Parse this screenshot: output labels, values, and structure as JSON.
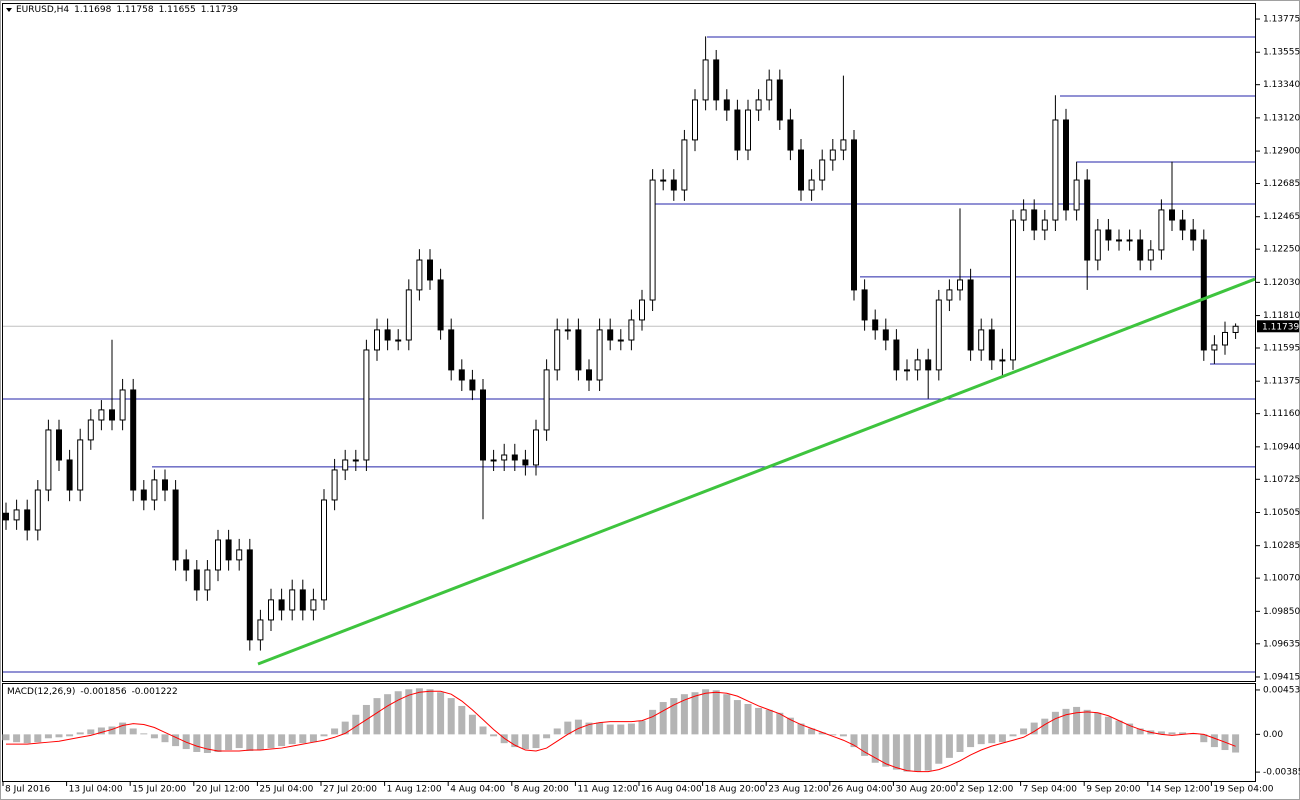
{
  "chart_data": [
    {
      "type": "candlestick",
      "title": "EURUSD,H4",
      "categories": [
        "8 Jul 2016",
        null,
        null,
        null,
        null,
        null,
        "13 Jul 04:00",
        null,
        null,
        null,
        null,
        null,
        "15 Jul 20:00",
        null,
        null,
        null,
        null,
        null,
        "20 Jul 12:00",
        null,
        null,
        null,
        null,
        null,
        "25 Jul 04:00",
        null,
        null,
        null,
        null,
        null,
        "27 Jul 20:00",
        null,
        null,
        null,
        null,
        null,
        "1 Aug 12:00",
        null,
        null,
        null,
        null,
        null,
        "4 Aug 04:00",
        null,
        null,
        null,
        null,
        null,
        "8 Aug 20:00",
        null,
        null,
        null,
        null,
        null,
        "11 Aug 12:00",
        null,
        null,
        null,
        null,
        null,
        "16 Aug 04:00",
        null,
        null,
        null,
        null,
        null,
        "18 Aug 20:00",
        null,
        null,
        null,
        null,
        null,
        "23 Aug 12:00",
        null,
        null,
        null,
        null,
        null,
        "26 Aug 04:00",
        null,
        null,
        null,
        null,
        null,
        "30 Aug 20:00",
        null,
        null,
        null,
        null,
        null,
        "2 Sep 12:00",
        null,
        null,
        null,
        null,
        null,
        "7 Sep 04:00",
        null,
        null,
        null,
        null,
        null,
        "9 Sep 20:00",
        null,
        null,
        null,
        null,
        null,
        "14 Sep 12:00",
        null,
        null,
        null,
        null,
        null,
        "19 Sep 04:00",
        null,
        null
      ],
      "open": [
        1.105,
        1.10456,
        1.10522,
        1.10389,
        1.10654,
        1.11052,
        1.10853,
        1.10654,
        1.10986,
        1.11118,
        1.11185,
        1.11118,
        1.11317,
        1.10654,
        1.10588,
        1.10721,
        1.10654,
        1.10191,
        1.10124,
        1.09992,
        1.10124,
        1.10323,
        1.10191,
        1.10257,
        1.09661,
        1.09793,
        1.09926,
        1.09859,
        1.09992,
        1.09859,
        1.09926,
        1.10588,
        1.10787,
        1.10853,
        1.10853,
        1.11582,
        1.11715,
        1.11648,
        1.11648,
        1.1198,
        1.12178,
        1.12046,
        1.11715,
        1.1145,
        1.11383,
        1.11317,
        1.10853,
        1.10853,
        1.10886,
        1.10853,
        1.1082,
        1.11052,
        1.1145,
        1.11715,
        1.11715,
        1.1145,
        1.11383,
        1.11715,
        1.11648,
        1.11648,
        1.11781,
        1.11913,
        1.12708,
        1.12708,
        1.12642,
        1.12974,
        1.13239,
        1.13504,
        1.13239,
        1.13172,
        1.12907,
        1.13172,
        1.13239,
        1.13371,
        1.13106,
        1.12907,
        1.12642,
        1.12708,
        1.12841,
        1.12907,
        1.12974,
        1.1198,
        1.11781,
        1.11715,
        1.11648,
        1.1145,
        1.1145,
        1.11516,
        1.1145,
        1.11913,
        1.1198,
        1.12046,
        1.11582,
        1.11715,
        1.11516,
        1.11516,
        1.12443,
        1.1251,
        1.12377,
        1.12443,
        1.13106,
        1.1251,
        1.12708,
        1.12178,
        1.12377,
        1.12311,
        1.12311,
        1.12311,
        1.12178,
        1.12245,
        1.1251,
        1.12443,
        1.12377,
        1.12311,
        1.11582,
        1.11615,
        1.11698
      ],
      "high": [
        1.1057,
        1.1059,
        1.1059,
        1.1072,
        1.1112,
        1.1112,
        1.1092,
        1.1106,
        1.1119,
        1.1125,
        1.1165,
        1.1139,
        1.1139,
        1.1072,
        1.1079,
        1.1079,
        1.1072,
        1.1026,
        1.1019,
        1.1019,
        1.1039,
        1.1039,
        1.1033,
        1.1033,
        1.0986,
        1.1,
        1.1,
        1.1006,
        1.1006,
        1.1,
        1.1066,
        1.1086,
        1.1092,
        1.1092,
        1.1165,
        1.1179,
        1.1179,
        1.1172,
        1.1205,
        1.1225,
        1.1225,
        1.1212,
        1.1179,
        1.1152,
        1.1145,
        1.1139,
        1.1092,
        1.1096,
        1.1096,
        1.1092,
        1.1112,
        1.1152,
        1.1179,
        1.1179,
        1.1179,
        1.1152,
        1.1179,
        1.1179,
        1.1172,
        1.1185,
        1.1198,
        1.1278,
        1.1278,
        1.1278,
        1.1304,
        1.1331,
        1.1366,
        1.1357,
        1.1331,
        1.1324,
        1.1324,
        1.1331,
        1.1344,
        1.1344,
        1.1318,
        1.1298,
        1.1278,
        1.1291,
        1.1298,
        1.134,
        1.1304,
        1.1205,
        1.1185,
        1.1179,
        1.1172,
        1.1152,
        1.1159,
        1.1159,
        1.1198,
        1.1205,
        1.1252,
        1.1212,
        1.1179,
        1.1179,
        1.1159,
        1.1251,
        1.1258,
        1.1258,
        1.1251,
        1.1327,
        1.1318,
        1.1283,
        1.1278,
        1.1245,
        1.1245,
        1.1238,
        1.1238,
        1.1238,
        1.1231,
        1.1258,
        1.1283,
        1.1251,
        1.1245,
        1.1238,
        1.1168,
        1.1177,
        1.11758
      ],
      "low": [
        1.1039,
        1.1039,
        1.1032,
        1.1032,
        1.1058,
        1.1078,
        1.1058,
        1.1058,
        1.1092,
        1.1105,
        1.1105,
        1.1105,
        1.1058,
        1.1052,
        1.1052,
        1.1058,
        1.1012,
        1.1005,
        1.0992,
        1.0992,
        1.1005,
        1.1012,
        1.1012,
        1.0959,
        1.0959,
        1.0972,
        1.0979,
        1.0979,
        1.0979,
        1.0979,
        1.0986,
        1.1052,
        1.1072,
        1.1078,
        1.1078,
        1.1151,
        1.1158,
        1.1158,
        1.1158,
        1.1191,
        1.1198,
        1.1165,
        1.1138,
        1.1131,
        1.1125,
        1.1046,
        1.1078,
        1.1078,
        1.1078,
        1.1075,
        1.1075,
        1.1098,
        1.1138,
        1.1165,
        1.1138,
        1.1131,
        1.1131,
        1.1158,
        1.1158,
        1.1158,
        1.1171,
        1.1184,
        1.1264,
        1.1257,
        1.1257,
        1.129,
        1.1317,
        1.1317,
        1.131,
        1.1284,
        1.1284,
        1.131,
        1.1317,
        1.1304,
        1.1284,
        1.1257,
        1.1257,
        1.1264,
        1.1277,
        1.1284,
        1.1191,
        1.1171,
        1.1165,
        1.1158,
        1.1138,
        1.1138,
        1.1138,
        1.1126,
        1.1138,
        1.1184,
        1.1191,
        1.1151,
        1.1151,
        1.1145,
        1.114,
        1.1145,
        1.1237,
        1.1231,
        1.1231,
        1.1237,
        1.1244,
        1.1244,
        1.1198,
        1.1211,
        1.1224,
        1.1224,
        1.1224,
        1.1211,
        1.1211,
        1.1218,
        1.1237,
        1.1231,
        1.1224,
        1.1151,
        1.1149,
        1.1155,
        1.11655
      ],
      "close": [
        1.10456,
        1.10522,
        1.10389,
        1.10654,
        1.11052,
        1.10853,
        1.10654,
        1.10986,
        1.11118,
        1.11185,
        1.11118,
        1.11317,
        1.10654,
        1.10588,
        1.10721,
        1.10654,
        1.10191,
        1.10124,
        1.09992,
        1.10124,
        1.10323,
        1.10191,
        1.10257,
        1.09661,
        1.09793,
        1.09926,
        1.09859,
        1.09992,
        1.09859,
        1.09926,
        1.10588,
        1.10787,
        1.10853,
        1.10853,
        1.11582,
        1.11715,
        1.11648,
        1.11648,
        1.1198,
        1.12178,
        1.12046,
        1.11715,
        1.1145,
        1.11383,
        1.11317,
        1.10853,
        1.10853,
        1.10886,
        1.10853,
        1.1082,
        1.11052,
        1.1145,
        1.11715,
        1.11715,
        1.1145,
        1.11383,
        1.11715,
        1.11648,
        1.11648,
        1.11781,
        1.11913,
        1.12708,
        1.12708,
        1.12642,
        1.12974,
        1.13239,
        1.13504,
        1.13239,
        1.13172,
        1.12907,
        1.13172,
        1.13239,
        1.13371,
        1.13106,
        1.12907,
        1.12642,
        1.12708,
        1.12841,
        1.12907,
        1.12974,
        1.1198,
        1.11781,
        1.11715,
        1.11648,
        1.1145,
        1.1145,
        1.11516,
        1.1145,
        1.11913,
        1.1198,
        1.12046,
        1.11582,
        1.11715,
        1.11516,
        1.11516,
        1.12443,
        1.1251,
        1.12377,
        1.12443,
        1.13106,
        1.1251,
        1.12708,
        1.12178,
        1.12377,
        1.12311,
        1.12311,
        1.12311,
        1.12178,
        1.12245,
        1.1251,
        1.12443,
        1.12377,
        1.12311,
        1.11582,
        1.11615,
        1.11698,
        1.11739
      ],
      "up_color": "#ffffff",
      "down_color": "#000000",
      "ylim": [
        1.09395,
        1.13868
      ],
      "yticks": [
        1.13775,
        1.13555,
        {
          "value": 1.1334,
          "label": "1.13340"
        },
        {
          "value": 1.1312,
          "label": "1.13120"
        },
        {
          "value": 1.129,
          "label": "1.12900"
        },
        1.12685,
        1.12465,
        {
          "value": 1.1225,
          "label": "1.12250"
        },
        {
          "value": 1.1203,
          "label": "1.12030"
        },
        {
          "value": 1.1181,
          "label": "1.11810"
        },
        1.11595,
        1.11375,
        {
          "value": 1.1116,
          "label": "1.11160"
        },
        {
          "value": 1.1094,
          "label": "1.10940"
        },
        1.10725,
        1.10505,
        1.10285,
        {
          "value": 1.1007,
          "label": "1.10070"
        },
        {
          "value": 1.0985,
          "label": "1.09850"
        },
        1.09635,
        1.09415
      ],
      "levels": [
        1.13656,
        1.13265,
        1.12828,
        1.12549,
        1.12066,
        1.11489,
        1.11257,
        1.10807,
        1.09448
      ],
      "level_color": "#2323a8",
      "trendline": {
        "values": [
          1.09501,
          1.12052
        ],
        "color": "#3ec43e"
      }
    },
    {
      "type": "macd",
      "title": "MACD(12,26,9)",
      "histogram": [
        -0.0006,
        -0.0008,
        -0.0009,
        -0.0008,
        -0.0004,
        -0.0003,
        -0.0002,
        0.0002,
        0.0005,
        0.0007,
        0.0008,
        0.0012,
        0.0006,
        0.0001,
        -0.0004,
        -0.0008,
        -0.0012,
        -0.0015,
        -0.0018,
        -0.0019,
        -0.0018,
        -0.0016,
        -0.0014,
        -0.0017,
        -0.0016,
        -0.0014,
        -0.0012,
        -0.001,
        -0.0009,
        -0.0008,
        -0.0002,
        0.0006,
        0.0013,
        0.002,
        0.003,
        0.0037,
        0.0041,
        0.0044,
        0.0046,
        0.0047,
        0.0046,
        0.0043,
        0.0037,
        0.0029,
        0.002,
        0.0008,
        -0.0002,
        -0.0009,
        -0.0013,
        -0.0015,
        -0.0014,
        -0.0004,
        0.0006,
        0.0013,
        0.0015,
        0.0012,
        0.0012,
        0.001,
        0.001,
        0.0011,
        0.0014,
        0.0025,
        0.0033,
        0.0037,
        0.0041,
        0.0043,
        0.0046,
        0.0045,
        0.0041,
        0.0035,
        0.0031,
        0.0027,
        0.0025,
        0.0022,
        0.0017,
        0.0011,
        0.0006,
        0.0002,
        -0.0001,
        -0.0002,
        -0.0013,
        -0.0022,
        -0.0029,
        -0.0033,
        -0.0036,
        -0.0038,
        -0.0038,
        -0.0037,
        -0.003,
        -0.0024,
        -0.0018,
        -0.0013,
        -0.001,
        -0.0009,
        -0.0008,
        -0.0002,
        0.0006,
        0.0012,
        0.0016,
        0.0023,
        0.0026,
        0.0028,
        0.0025,
        0.0022,
        0.0018,
        0.0014,
        0.0011,
        0.0006,
        0.0004,
        0.0003,
        0.0002,
        0.0002,
        0.0001,
        -0.0008,
        -0.0013,
        -0.0016,
        -0.001856
      ],
      "signal": [
        -0.001,
        -0.001,
        -0.001,
        -0.0009,
        -0.0008,
        -0.0007,
        -0.0005,
        -0.0003,
        -0.0001,
        0.0002,
        0.0005,
        0.0009,
        0.0011,
        0.001,
        0.0007,
        0.0002,
        -0.0003,
        -0.0008,
        -0.0012,
        -0.0015,
        -0.0017,
        -0.0017,
        -0.0017,
        -0.0016,
        -0.0016,
        -0.0015,
        -0.0014,
        -0.0012,
        -0.001,
        -0.0008,
        -0.0006,
        -0.0003,
        0.0001,
        0.0008,
        0.0015,
        0.0022,
        0.0029,
        0.0035,
        0.004,
        0.0043,
        0.0044,
        0.0044,
        0.0041,
        0.0034,
        0.0025,
        0.0015,
        0.0005,
        -0.0004,
        -0.0011,
        -0.0016,
        -0.0017,
        -0.0014,
        -0.0007,
        0,
        0.0006,
        0.001,
        0.0012,
        0.0013,
        0.0013,
        0.0013,
        0.0014,
        0.0018,
        0.0024,
        0.003,
        0.0035,
        0.0039,
        0.0042,
        0.0043,
        0.0042,
        0.0039,
        0.0034,
        0.0029,
        0.0025,
        0.0021,
        0.0015,
        0.001,
        0.0006,
        0.0002,
        -0.0002,
        -0.0006,
        -0.0011,
        -0.0018,
        -0.0024,
        -0.003,
        -0.0034,
        -0.0037,
        -0.0038,
        -0.0038,
        -0.0036,
        -0.0032,
        -0.0027,
        -0.0021,
        -0.0016,
        -0.0012,
        -0.0009,
        -0.0006,
        -0.0003,
        0.0003,
        0.001,
        0.0016,
        0.002,
        0.0022,
        0.0023,
        0.0022,
        0.0019,
        0.0014,
        0.0009,
        0.0005,
        0.0002,
        0,
        -0.0001,
        0,
        0.0001,
        0,
        -0.0004,
        -0.0008,
        -0.001222
      ],
      "histogram_color": "#b4b4b4",
      "signal_color": "#ff0000",
      "ylim": [
        -0.00466,
        0.00514
      ],
      "yticks": [
        0.004532,
        {
          "value": 0,
          "label": "0.00"
        },
        -0.003854
      ]
    }
  ]
}
